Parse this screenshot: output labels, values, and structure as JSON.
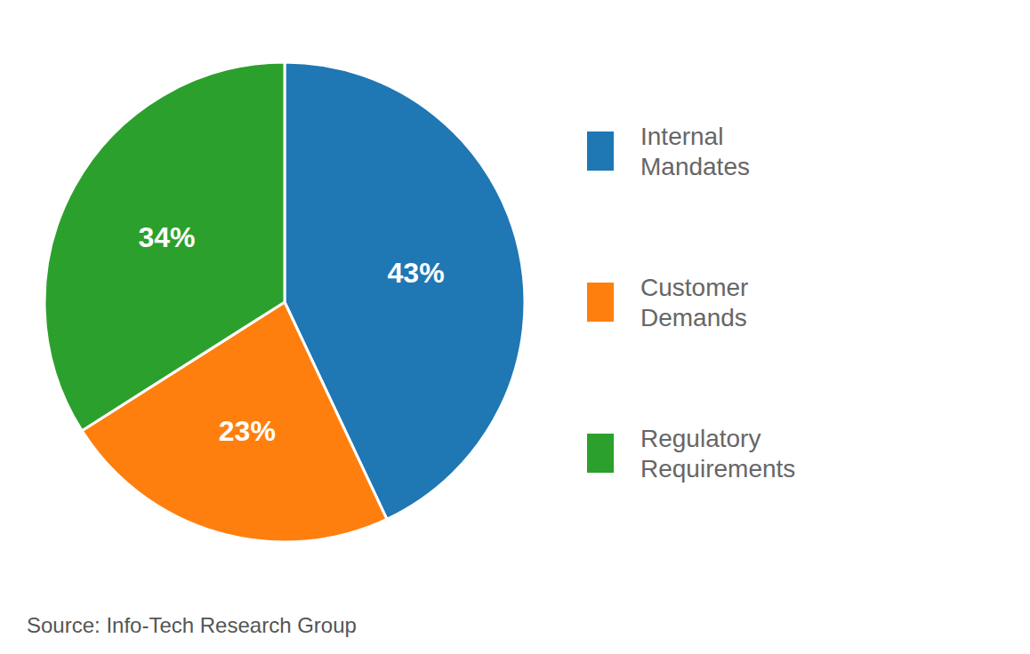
{
  "chart_data": {
    "type": "pie",
    "categories": [
      "Internal\nMandates",
      "Customer\nDemands",
      "Regulatory\nRequirements"
    ],
    "values": [
      43,
      23,
      34
    ],
    "value_labels": [
      "43%",
      "23%",
      "34%"
    ],
    "data_labels": true,
    "legend": "right",
    "annotations": [
      "Source: Info-Tech Research Group"
    ]
  }
}
